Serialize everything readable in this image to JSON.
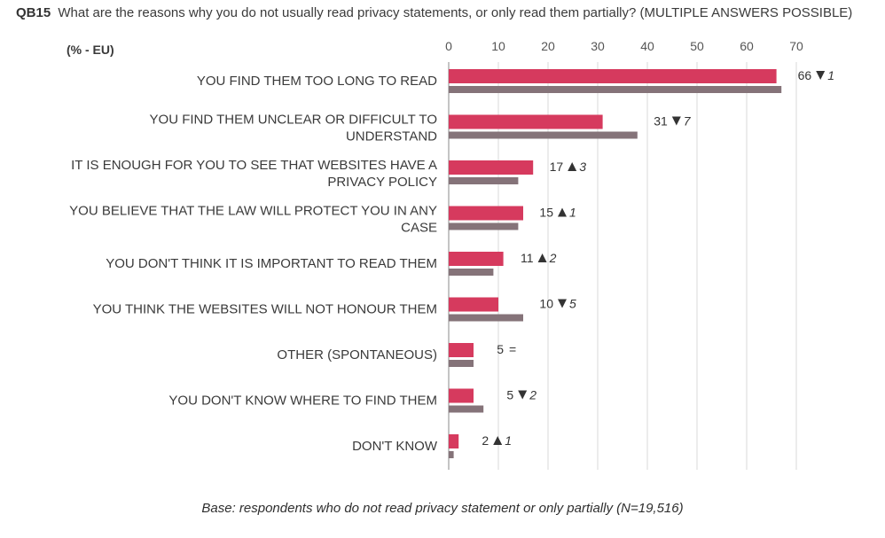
{
  "header": {
    "code": "QB15",
    "question": "What are the reasons why you do not usually read privacy statements, or only read them partially? (MULTIPLE ANSWERS POSSIBLE)",
    "unit": "(% - EU)"
  },
  "footer": {
    "base": "Base: respondents who do not read privacy statement or only partially (N=19,516)"
  },
  "chart_data": {
    "type": "bar",
    "orientation": "horizontal",
    "xlim": [
      0,
      70
    ],
    "xticks": [
      "0",
      "10",
      "20",
      "30",
      "40",
      "50",
      "60",
      "70"
    ],
    "grid": true,
    "colors": {
      "current": "#d63a5e",
      "previous": "#857379",
      "up_arrow": "#333333",
      "down_arrow": "#333333"
    },
    "categories": [
      {
        "label_lines": [
          "YOU FIND THEM TOO LONG TO READ"
        ],
        "value": 66,
        "previous": 67,
        "direction": "down",
        "change": "1"
      },
      {
        "label_lines": [
          "YOU FIND THEM UNCLEAR OR DIFFICULT TO",
          "UNDERSTAND"
        ],
        "value": 31,
        "previous": 38,
        "direction": "down",
        "change": "7"
      },
      {
        "label_lines": [
          "IT IS ENOUGH FOR YOU TO SEE THAT WEBSITES HAVE A",
          "PRIVACY POLICY"
        ],
        "value": 17,
        "previous": 14,
        "direction": "up",
        "change": "3"
      },
      {
        "label_lines": [
          "YOU BELIEVE THAT THE LAW WILL PROTECT YOU IN ANY",
          "CASE"
        ],
        "value": 15,
        "previous": 14,
        "direction": "up",
        "change": "1"
      },
      {
        "label_lines": [
          "YOU DON'T THINK IT IS IMPORTANT TO READ THEM"
        ],
        "value": 11,
        "previous": 9,
        "direction": "up",
        "change": "2"
      },
      {
        "label_lines": [
          "YOU THINK THE WEBSITES WILL NOT HONOUR THEM"
        ],
        "value": 10,
        "previous": 15,
        "direction": "down",
        "change": "5"
      },
      {
        "label_lines": [
          "OTHER (SPONTANEOUS)"
        ],
        "value": 5,
        "previous": 5,
        "direction": "equal",
        "change": ""
      },
      {
        "label_lines": [
          "YOU DON'T KNOW WHERE TO FIND THEM"
        ],
        "value": 5,
        "previous": 7,
        "direction": "down",
        "change": "2"
      },
      {
        "label_lines": [
          "DON'T KNOW"
        ],
        "value": 2,
        "previous": 1,
        "direction": "up",
        "change": "1"
      }
    ]
  }
}
